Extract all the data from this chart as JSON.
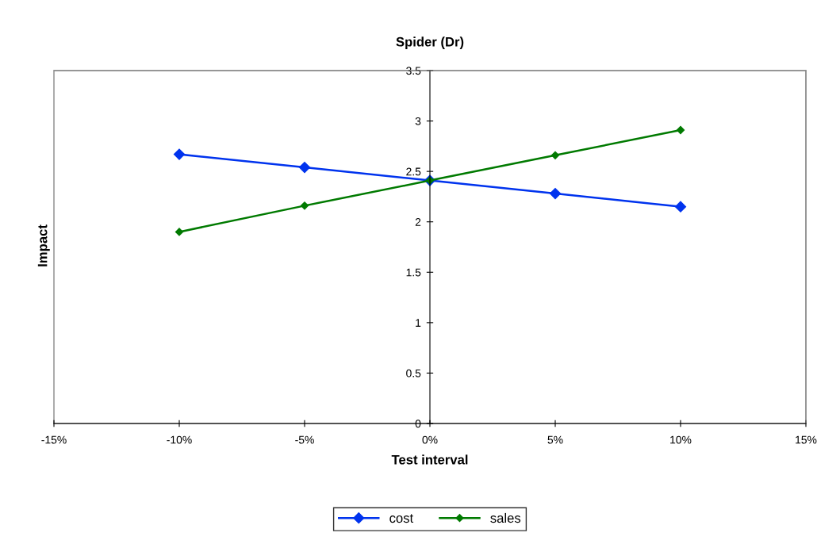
{
  "chart_data": {
    "type": "line",
    "title": "Spider (Dr)",
    "xlabel": "Test interval",
    "ylabel": "Impact",
    "x": [
      -10,
      -5,
      0,
      5,
      10
    ],
    "series": [
      {
        "name": "cost",
        "color": "#0033ee",
        "values": [
          2.67,
          2.54,
          2.41,
          2.28,
          2.15
        ]
      },
      {
        "name": "sales",
        "color": "#007a00",
        "values": [
          1.9,
          2.16,
          2.41,
          2.66,
          2.91
        ]
      }
    ],
    "xlim": [
      -15,
      15
    ],
    "xticks": [
      {
        "value": -15,
        "label": "-15%"
      },
      {
        "value": -10,
        "label": "-10%"
      },
      {
        "value": -5,
        "label": "-5%"
      },
      {
        "value": 0,
        "label": "0%"
      },
      {
        "value": 5,
        "label": "5%"
      },
      {
        "value": 10,
        "label": "10%"
      },
      {
        "value": 15,
        "label": "15%"
      }
    ],
    "ylim": [
      0,
      3.5
    ],
    "yticks": [
      0,
      0.5,
      1,
      1.5,
      2,
      2.5,
      3,
      3.5
    ],
    "grid": false,
    "legend": "bottom",
    "marker": "diamond",
    "line_style": "solid"
  }
}
